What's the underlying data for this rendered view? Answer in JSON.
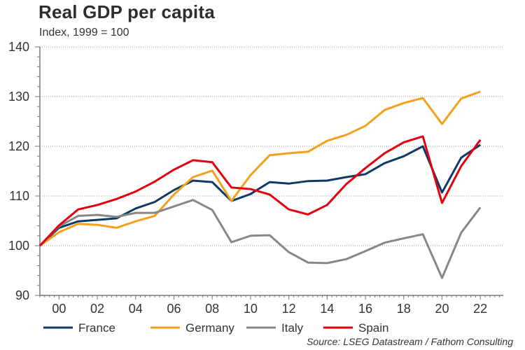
{
  "chart_data": {
    "type": "line",
    "title": "Real GDP per capita",
    "subtitle": "Index, 1999 = 100",
    "xlabel": "",
    "ylabel": "",
    "x": [
      1999,
      2000,
      2001,
      2002,
      2003,
      2004,
      2005,
      2006,
      2007,
      2008,
      2009,
      2010,
      2011,
      2012,
      2013,
      2014,
      2015,
      2016,
      2017,
      2018,
      2019,
      2020,
      2021,
      2022
    ],
    "xlim": [
      1999,
      2023.2
    ],
    "ylim": [
      90,
      140
    ],
    "yticks": [
      90,
      100,
      110,
      120,
      130,
      140
    ],
    "ytick_labels": [
      "90",
      "100",
      "110",
      "120",
      "130",
      "140"
    ],
    "xticks": [
      2000,
      2002,
      2004,
      2006,
      2008,
      2010,
      2012,
      2014,
      2016,
      2018,
      2020,
      2022
    ],
    "xtick_labels": [
      "00",
      "02",
      "04",
      "06",
      "08",
      "10",
      "12",
      "14",
      "16",
      "18",
      "20",
      "22"
    ],
    "grid": "horizontal-dotted",
    "legend_position": "bottom",
    "series": [
      {
        "name": "France",
        "color": "#0e3a68",
        "values": [
          100,
          103.6,
          104.9,
          105.2,
          105.5,
          107.5,
          108.8,
          111.2,
          113.1,
          112.8,
          109.0,
          110.4,
          112.8,
          112.5,
          113.0,
          113.1,
          113.8,
          114.4,
          116.6,
          118.0,
          120.0,
          110.7,
          117.7,
          120.3
        ]
      },
      {
        "name": "Germany",
        "color": "#f5a01a",
        "values": [
          100,
          102.7,
          104.4,
          104.2,
          103.6,
          104.9,
          106.0,
          110.3,
          113.8,
          115.1,
          109.0,
          114.2,
          118.2,
          118.6,
          118.9,
          121.1,
          122.3,
          124.1,
          127.3,
          128.7,
          129.7,
          124.5,
          129.6,
          131.0
        ]
      },
      {
        "name": "Italy",
        "color": "#878787",
        "values": [
          100,
          103.9,
          106.0,
          106.2,
          105.8,
          106.6,
          106.6,
          107.9,
          109.2,
          107.2,
          100.7,
          102.0,
          102.1,
          98.7,
          96.6,
          96.5,
          97.3,
          98.9,
          100.6,
          101.5,
          102.3,
          93.5,
          102.6,
          107.7
        ]
      },
      {
        "name": "Spain",
        "color": "#e3000f",
        "values": [
          100,
          104.1,
          107.3,
          108.2,
          109.4,
          110.9,
          112.9,
          115.3,
          117.2,
          116.8,
          111.7,
          111.4,
          110.3,
          107.3,
          106.3,
          108.2,
          112.4,
          115.6,
          118.6,
          120.8,
          122.0,
          108.6,
          116.0,
          121.3
        ]
      }
    ]
  },
  "source": "Source: LSEG Datastream / Fathom Consulting"
}
